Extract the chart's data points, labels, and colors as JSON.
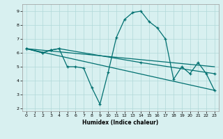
{
  "bg_color": "#d8f0f0",
  "grid_color": "#b0d8d8",
  "line_color": "#007070",
  "xlabel": "Humidex (Indice chaleur)",
  "xlim": [
    -0.5,
    23.5
  ],
  "ylim": [
    1.8,
    9.5
  ],
  "xticks": [
    0,
    1,
    2,
    3,
    4,
    5,
    6,
    7,
    8,
    9,
    10,
    11,
    12,
    13,
    14,
    15,
    16,
    17,
    18,
    19,
    20,
    21,
    22,
    23
  ],
  "yticks": [
    2,
    3,
    4,
    5,
    6,
    7,
    8,
    9
  ],
  "curve1": {
    "x": [
      0,
      2,
      3,
      4,
      5,
      6,
      7,
      8,
      9,
      10,
      11,
      12,
      13,
      14,
      15,
      16,
      17,
      18,
      19,
      20,
      21,
      22,
      23
    ],
    "y": [
      6.3,
      6.0,
      6.2,
      6.3,
      5.0,
      5.0,
      4.9,
      3.5,
      2.3,
      4.6,
      7.1,
      8.4,
      8.9,
      9.0,
      8.25,
      7.8,
      7.0,
      4.1,
      5.0,
      4.5,
      5.3,
      4.5,
      3.3
    ]
  },
  "curve2": {
    "x": [
      0,
      2,
      3,
      4,
      14,
      23
    ],
    "y": [
      6.3,
      6.0,
      6.2,
      6.3,
      5.3,
      4.5
    ]
  },
  "curve3": {
    "x": [
      0,
      23
    ],
    "y": [
      6.3,
      5.0
    ]
  },
  "curve4": {
    "x": [
      0,
      23
    ],
    "y": [
      6.3,
      3.3
    ]
  }
}
